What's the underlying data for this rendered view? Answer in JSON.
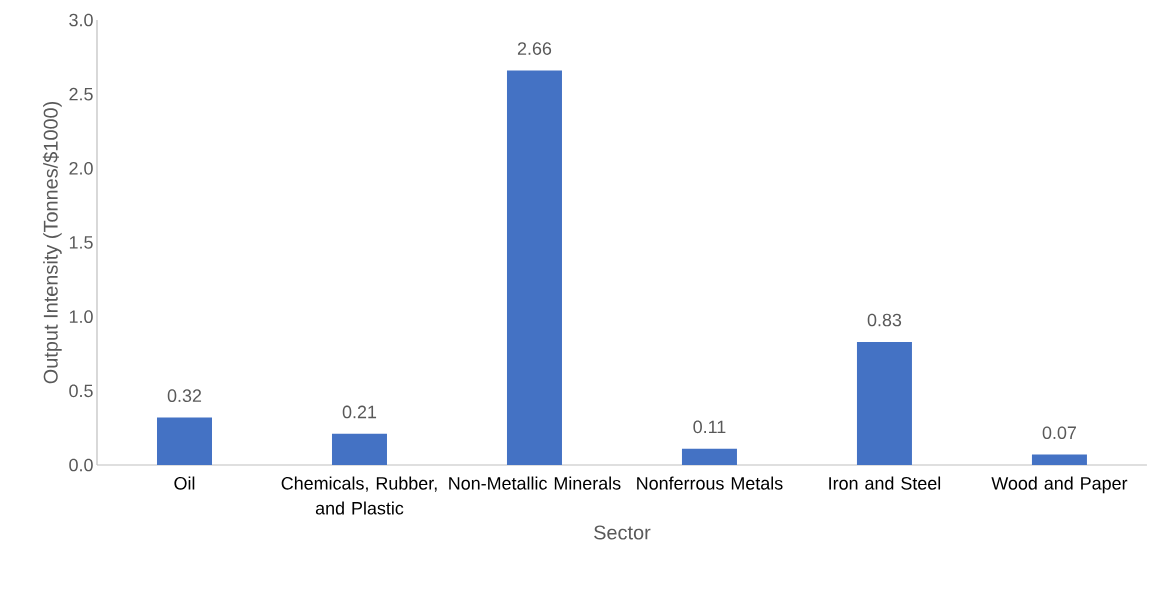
{
  "chart_data": {
    "type": "bar",
    "xlabel": "Sector",
    "ylabel": "Output Intensity (Tonnes/$1000)",
    "categories": [
      "Oil",
      "Chemicals, Rubber, and Plastic",
      "Non-Metallic Minerals",
      "Nonferrous Metals",
      "Iron and Steel",
      "Wood and Paper"
    ],
    "values": [
      0.32,
      0.21,
      2.66,
      0.11,
      0.83,
      0.07
    ],
    "value_labels": [
      "0.32",
      "0.21",
      "2.66",
      "0.11",
      "0.83",
      "0.07"
    ],
    "color": "#4472c4",
    "ylim": [
      0,
      3
    ],
    "yticks": [
      {
        "value": 0,
        "label": "0.0"
      },
      {
        "value": 0.5,
        "label": "0.5"
      },
      {
        "value": 1,
        "label": "1.0"
      },
      {
        "value": 1.5,
        "label": "1.5"
      },
      {
        "value": 2,
        "label": "2.0"
      },
      {
        "value": 2.5,
        "label": "2.5"
      },
      {
        "value": 3,
        "label": "3.0"
      }
    ]
  }
}
